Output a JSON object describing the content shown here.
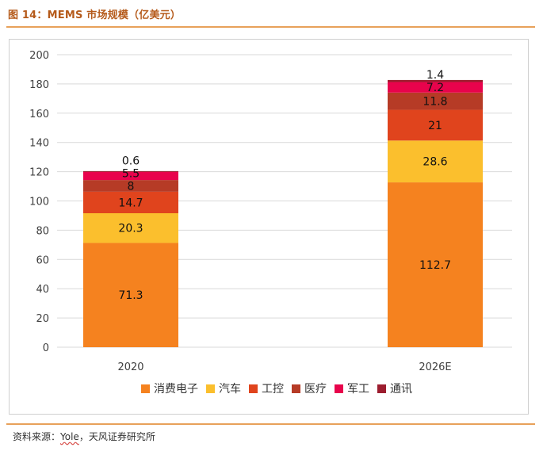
{
  "figure": {
    "title": "图 14：MEMS 市场规模（亿美元）",
    "source_prefix": "资料来源：",
    "source_vendor": "Yole",
    "source_suffix": "，天风证券研究所"
  },
  "colors": {
    "accent": "#e8a15a",
    "grid": "#d9d9d9",
    "axis_text": "#404040"
  },
  "chart_data": {
    "type": "bar",
    "stacked": true,
    "title": "MEMS 市场规模（亿美元）",
    "xlabel": "",
    "ylabel": "",
    "ylim": [
      0,
      200
    ],
    "yticks": [
      0,
      20,
      40,
      60,
      80,
      100,
      120,
      140,
      160,
      180,
      200
    ],
    "grid": true,
    "legend_position": "bottom",
    "categories": [
      "2020",
      "2026E"
    ],
    "series": [
      {
        "name": "消费电子",
        "color": "#f5821f",
        "values": [
          71.3,
          112.7
        ],
        "labels": [
          "71.3",
          "112.7"
        ]
      },
      {
        "name": "汽车",
        "color": "#fbbf2d",
        "values": [
          20.3,
          28.6
        ],
        "labels": [
          "20.3",
          "28.6"
        ]
      },
      {
        "name": "工控",
        "color": "#e0441d",
        "values": [
          14.7,
          21
        ],
        "labels": [
          "14.7",
          "21"
        ]
      },
      {
        "name": "医疗",
        "color": "#b63b26",
        "values": [
          8,
          11.8
        ],
        "labels": [
          "8",
          "11.8"
        ]
      },
      {
        "name": "军工",
        "color": "#e8034c",
        "values": [
          5.5,
          7.2
        ],
        "labels": [
          "5.5",
          "7.2"
        ]
      },
      {
        "name": "通讯",
        "color": "#9c1d2f",
        "values": [
          0.6,
          1.4
        ],
        "labels": [
          "0.6",
          "1.4"
        ]
      }
    ]
  }
}
